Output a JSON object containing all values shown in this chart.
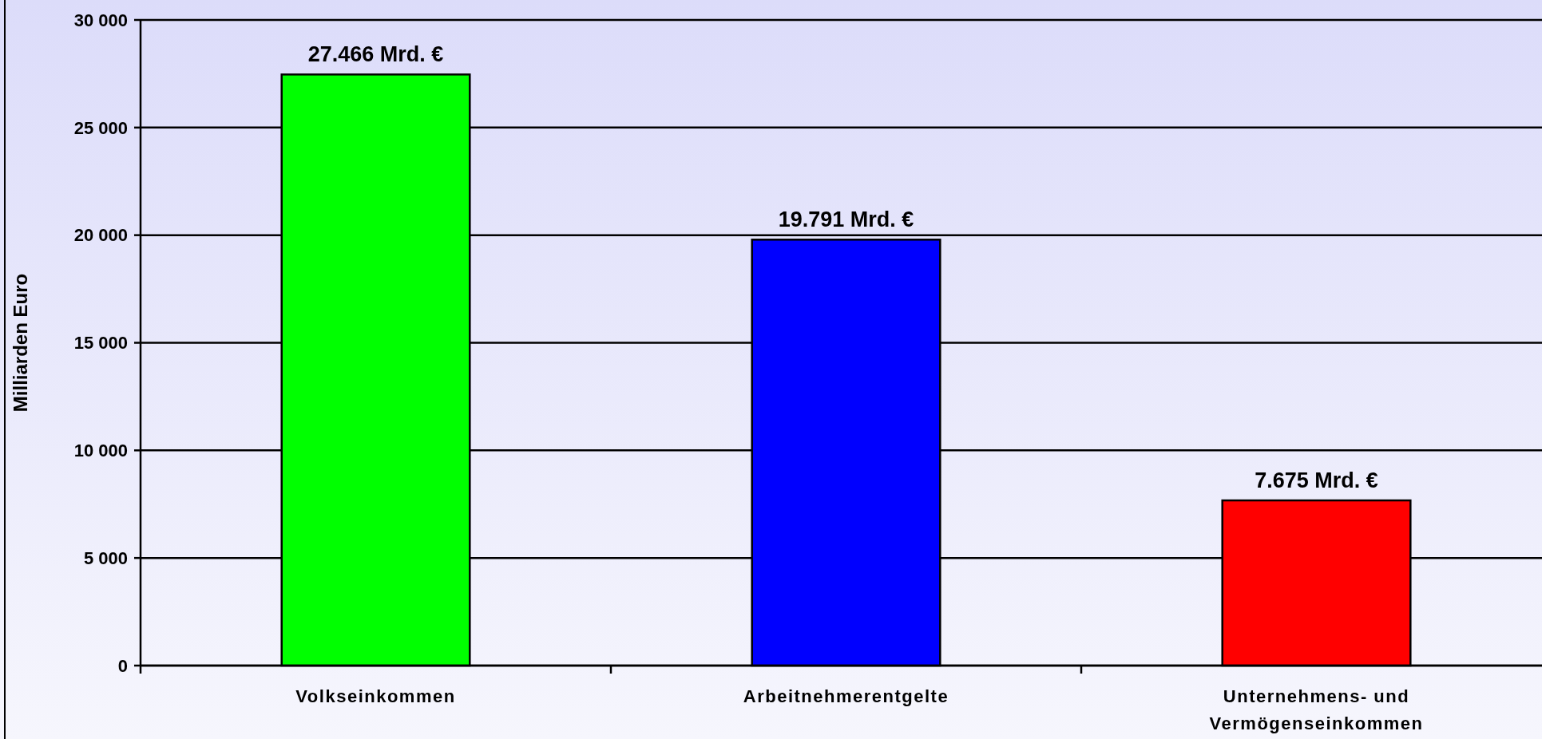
{
  "chart_data": {
    "type": "bar",
    "ylabel": "Milliarden Euro",
    "categories": [
      "Volkseinkommen",
      "Arbeitnehmerentgelte",
      "Unternehmens- und Vermögenseinkommen"
    ],
    "values": [
      27466,
      19791,
      7675
    ],
    "colors": [
      "#00ff00",
      "#0000ff",
      "#ff0000"
    ],
    "value_labels": [
      "27.466 Mrd. €",
      "19.791 Mrd. €",
      "7.675 Mrd. €"
    ],
    "ylim": [
      0,
      30000
    ],
    "yticks": [
      {
        "value": 0,
        "label": "0"
      },
      {
        "value": 5000,
        "label": "5 000"
      },
      {
        "value": 10000,
        "label": "10 000"
      },
      {
        "value": 15000,
        "label": "15 000"
      },
      {
        "value": 20000,
        "label": "20 000"
      },
      {
        "value": 25000,
        "label": "25 000"
      },
      {
        "value": 30000,
        "label": "30 000"
      }
    ],
    "grid": "y"
  }
}
